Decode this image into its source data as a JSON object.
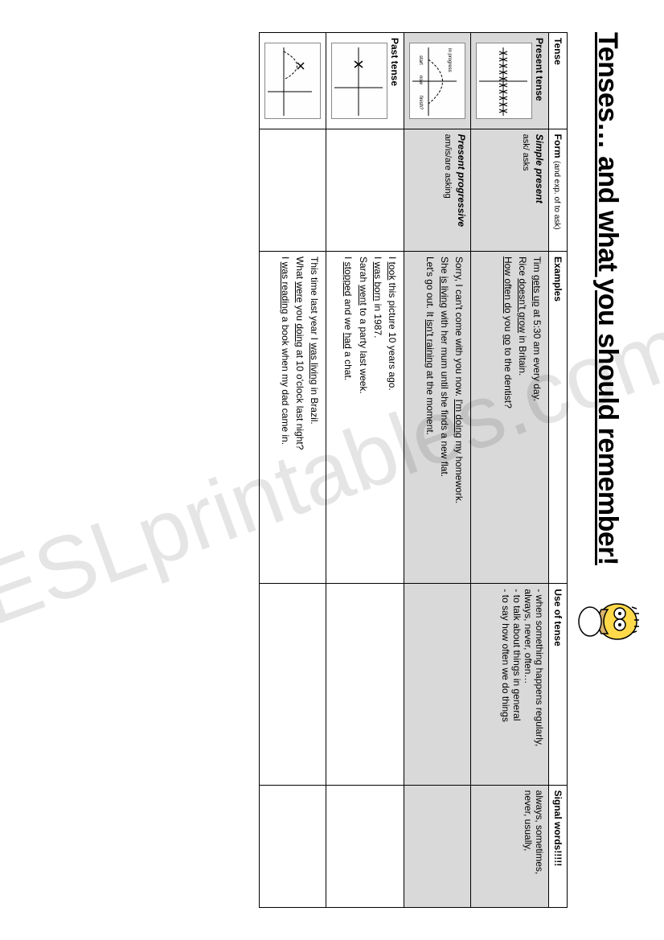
{
  "page": {
    "title": "Tenses… and what you should remember!",
    "watermark": "ESLprintables.com"
  },
  "headers": {
    "tense": "Tense",
    "form": "Form",
    "form_sub": "(and exp. of to ask)",
    "examples": "Examples",
    "use": "Use of tense",
    "signal": "Signal words!!!!!"
  },
  "rows": {
    "present_simple": {
      "tense_label": "Present tense",
      "form_name": "Simple present",
      "form_detail": "ask/ asks",
      "examples": [
        "Tim <u>gets up</u> at 5:30 am every day.",
        "Rice <u>doesn't grow</u> in Britain.",
        "<u>How often do</u> you <u>go</u> to the dentist?"
      ],
      "use": "- when something happens regularly, always, never, often…\n- to talk about things in general\n- to say how often we do things",
      "signal": "always, sometimes, never, usually,"
    },
    "present_progressive": {
      "form_name": "Present progressive",
      "form_detail": "am/is/are asking",
      "examples": [
        "Sorry, I can't come with you now. <u>I'm doing</u> my homework.",
        "She <u>is living</u> with her mum until she finds a new flat.",
        "Let's go out. It <u>isn't raining</u> at the moment."
      ],
      "use": "",
      "signal": ""
    },
    "past_simple": {
      "tense_label": "Past tense",
      "form_name": "",
      "form_detail": "",
      "examples": [
        "I <u>took</u> this picture 10 years ago.",
        "I <u>was born</u> in 1987.",
        "Sarah <u>went</u> to a party last week.",
        "I <u>stopped</u> and we <u>had</u> a chat."
      ],
      "use": "",
      "signal": ""
    },
    "past_progressive": {
      "form_name": "",
      "form_detail": "",
      "examples": [
        "This time last year I <u>was living</u> in Brazil.",
        "What <u>were</u> you <u>doing</u> at 10 o'clock last night?",
        "I <u>was reading</u> a book when my dad came in."
      ],
      "use": "",
      "signal": ""
    }
  }
}
